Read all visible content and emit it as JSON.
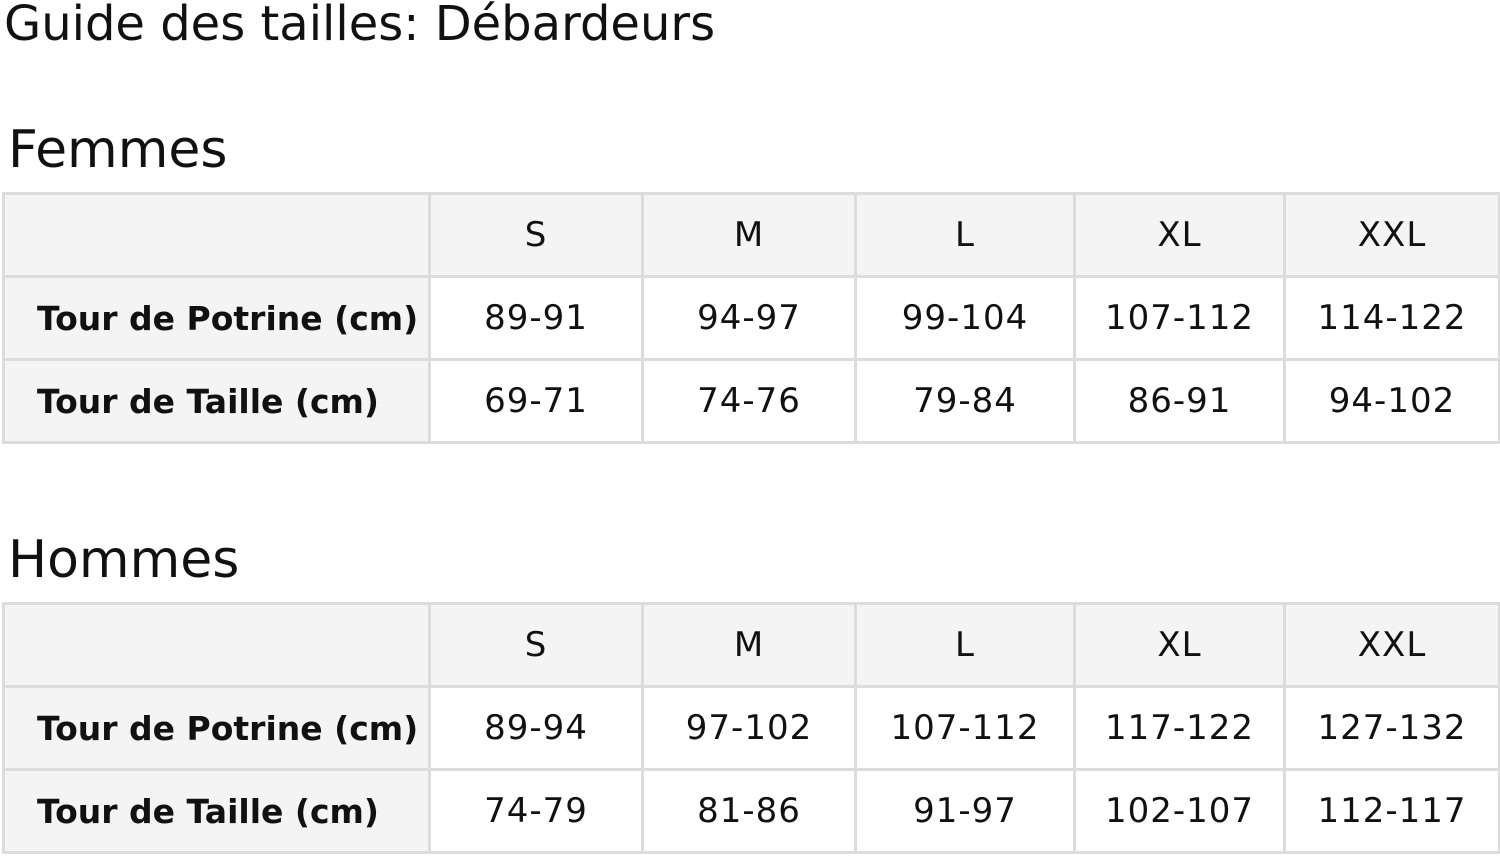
{
  "title": "Guide des tailles: Débardeurs",
  "tables": [
    {
      "heading": "Femmes",
      "sizes": [
        "S",
        "M",
        "L",
        "XL",
        "XXL"
      ],
      "rows": [
        {
          "label": "Tour de Potrine (cm)",
          "values": [
            "89-91",
            "94-97",
            "99-104",
            "107-112",
            "114-122"
          ]
        },
        {
          "label": "Tour de Taille (cm)",
          "values": [
            "69-71",
            "74-76",
            "79-84",
            "86-91",
            "94-102"
          ]
        }
      ]
    },
    {
      "heading": "Hommes",
      "sizes": [
        "S",
        "M",
        "L",
        "XL",
        "XXL"
      ],
      "rows": [
        {
          "label": "Tour de Potrine (cm)",
          "values": [
            "89-94",
            "97-102",
            "107-112",
            "117-122",
            "127-132"
          ]
        },
        {
          "label": "Tour de Taille (cm)",
          "values": [
            "74-79",
            "81-86",
            "91-97",
            "102-107",
            "112-117"
          ]
        }
      ]
    }
  ]
}
